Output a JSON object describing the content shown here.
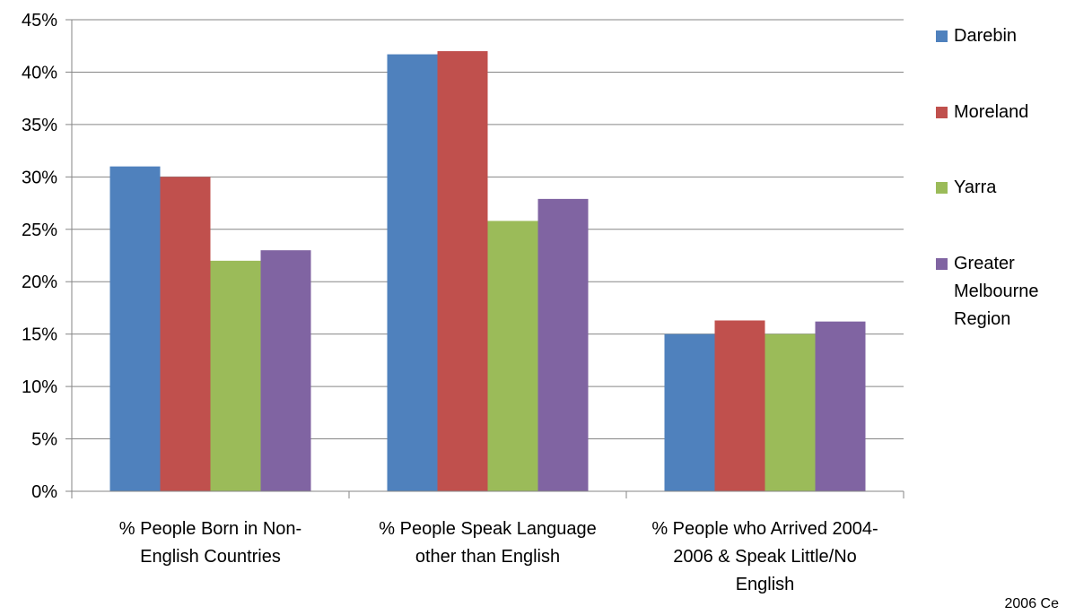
{
  "chart_data": {
    "type": "bar",
    "categories": [
      [
        "% People Born in Non-",
        "English Countries"
      ],
      [
        "% People Speak Language",
        "other than English"
      ],
      [
        "% People who Arrived 2004-",
        "2006 & Speak Little/No",
        "English"
      ]
    ],
    "series": [
      {
        "name": "Darebin",
        "color": "#4F81BD",
        "values": [
          31,
          41.7,
          15
        ]
      },
      {
        "name": "Moreland",
        "color": "#C0504D",
        "values": [
          30,
          42,
          16.3
        ]
      },
      {
        "name": "Yarra",
        "color": "#9BBB59",
        "values": [
          22,
          25.8,
          15
        ]
      },
      {
        "name": "Greater Melbourne Region",
        "legend_lines": [
          "Greater",
          "Melbourne",
          "Region"
        ],
        "color": "#8064A2",
        "values": [
          23,
          27.9,
          16.2
        ]
      }
    ],
    "ylim": [
      0,
      45
    ],
    "yticks": [
      "0%",
      "5%",
      "10%",
      "15%",
      "20%",
      "25%",
      "30%",
      "35%",
      "40%",
      "45%"
    ],
    "grid": true,
    "legend_placement": "right",
    "title": "",
    "xlabel": "",
    "ylabel": ""
  },
  "footnote": "2006 Ce"
}
